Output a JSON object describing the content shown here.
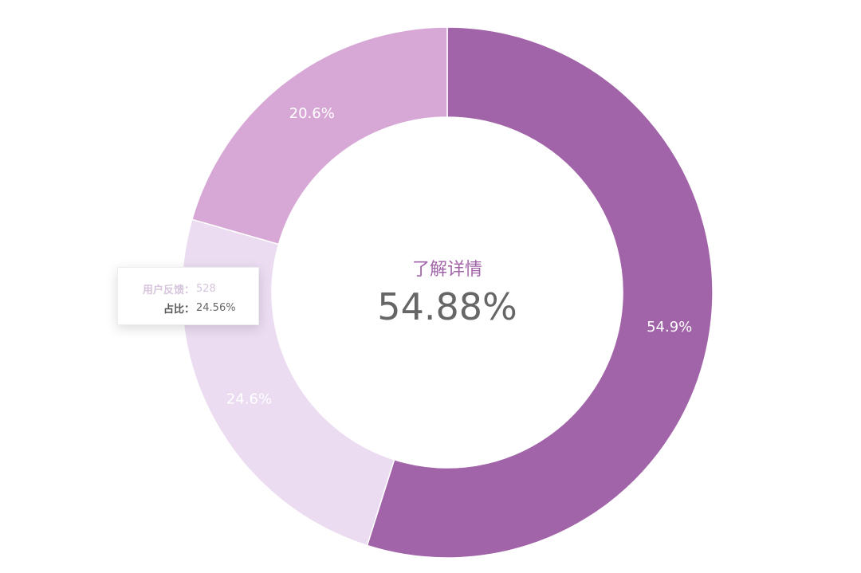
{
  "chart_data": {
    "type": "pie",
    "variant": "donut",
    "slices": [
      {
        "value": 54.88,
        "label": "54.9%",
        "color": "#a264a8"
      },
      {
        "value": 24.56,
        "label": "24.6%",
        "color": "#ebdcf2"
      },
      {
        "value": 20.56,
        "label": "20.6%",
        "color": "#d7a8d6"
      }
    ],
    "center": {
      "title": "了解详情",
      "value": "54.88%"
    },
    "tooltip": {
      "series_key": "用户反馈：",
      "series_value": "528",
      "share_key": "占比：",
      "share_value": "24.56%"
    }
  }
}
